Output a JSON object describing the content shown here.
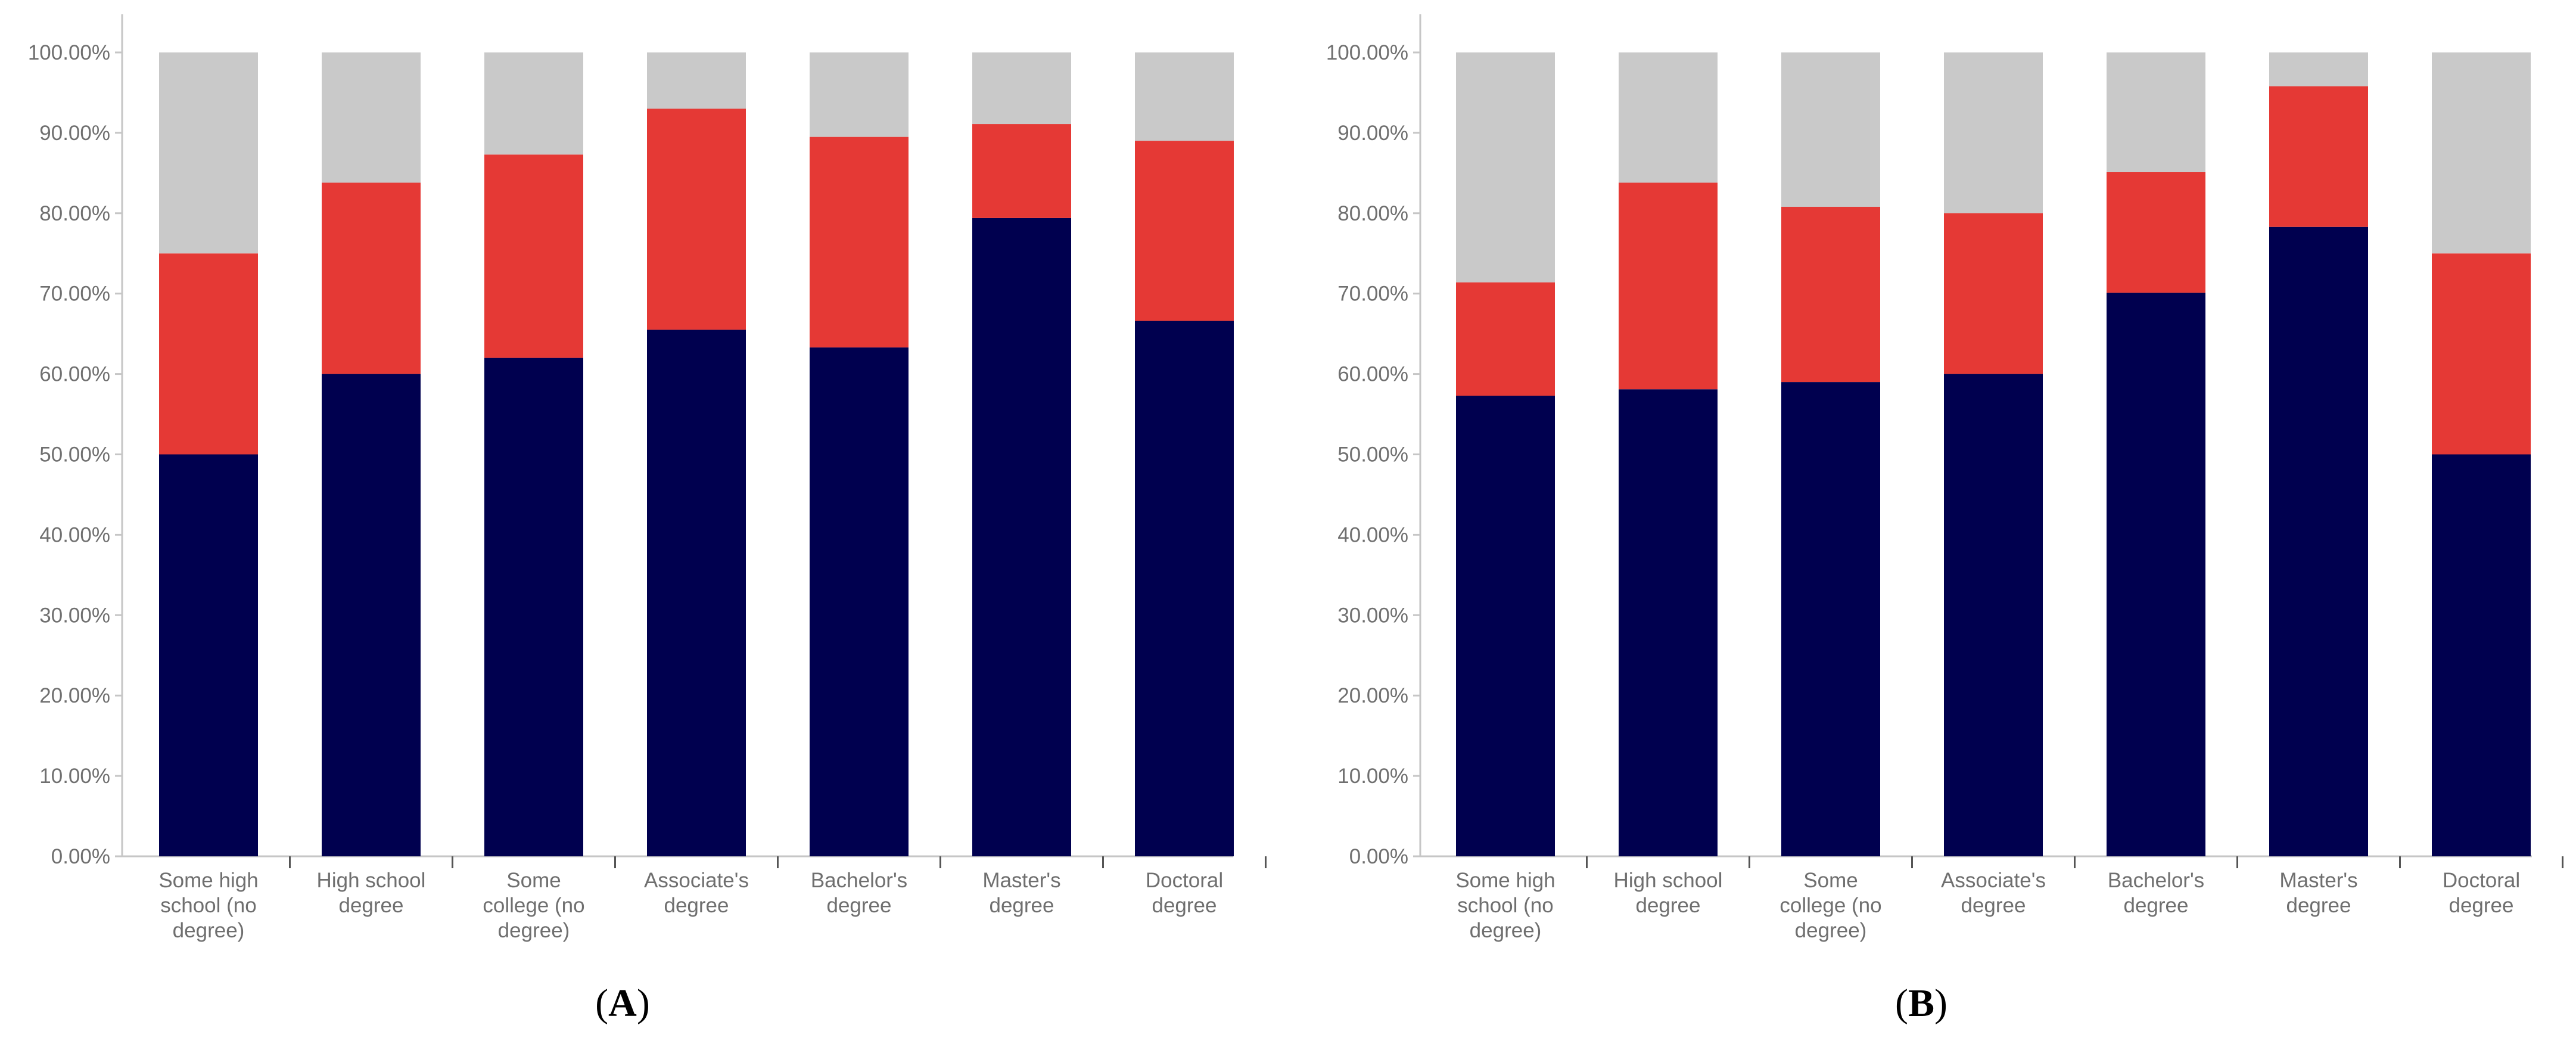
{
  "colors": {
    "segment1": "#00004f",
    "segment2": "#e53935",
    "segment3": "#c9c9c9",
    "axis": "#c6c6c6",
    "label": "#6f6f6f"
  },
  "chart_data": [
    {
      "type": "bar",
      "stacked": true,
      "panel_label": "A",
      "title": "",
      "xlabel": "",
      "ylabel": "",
      "ylim": [
        0,
        100
      ],
      "y_ticks": [
        0,
        10,
        20,
        30,
        40,
        50,
        60,
        70,
        80,
        90,
        100
      ],
      "y_tick_labels": [
        "0.00%",
        "10.00%",
        "20.00%",
        "30.00%",
        "40.00%",
        "50.00%",
        "60.00%",
        "70.00%",
        "80.00%",
        "90.00%",
        "100.00%"
      ],
      "categories": [
        [
          "Some high",
          "school (no",
          "degree)"
        ],
        [
          "High school",
          "degree"
        ],
        [
          "Some",
          "college (no",
          "degree)"
        ],
        [
          "Associate's",
          "degree"
        ],
        [
          "Bachelor's",
          "degree"
        ],
        [
          "Master's",
          "degree"
        ],
        [
          "Doctoral",
          "degree"
        ]
      ],
      "series": [
        {
          "name": "segment1",
          "values": [
            50.0,
            60.0,
            62.0,
            65.5,
            63.3,
            79.4,
            66.6
          ]
        },
        {
          "name": "segment2",
          "values": [
            25.0,
            23.8,
            25.3,
            27.5,
            26.2,
            11.7,
            22.4
          ]
        },
        {
          "name": "segment3",
          "values": [
            25.0,
            16.2,
            12.7,
            7.0,
            10.5,
            8.9,
            11.0
          ]
        }
      ]
    },
    {
      "type": "bar",
      "stacked": true,
      "panel_label": "B",
      "title": "",
      "xlabel": "",
      "ylabel": "",
      "ylim": [
        0,
        100
      ],
      "y_ticks": [
        0,
        10,
        20,
        30,
        40,
        50,
        60,
        70,
        80,
        90,
        100
      ],
      "y_tick_labels": [
        "0.00%",
        "10.00%",
        "20.00%",
        "30.00%",
        "40.00%",
        "50.00%",
        "60.00%",
        "70.00%",
        "80.00%",
        "90.00%",
        "100.00%"
      ],
      "categories": [
        [
          "Some high",
          "school (no",
          "degree)"
        ],
        [
          "High school",
          "degree"
        ],
        [
          "Some",
          "college (no",
          "degree)"
        ],
        [
          "Associate's",
          "degree"
        ],
        [
          "Bachelor's",
          "degree"
        ],
        [
          "Master's",
          "degree"
        ],
        [
          "Doctoral",
          "degree"
        ]
      ],
      "series": [
        {
          "name": "segment1",
          "values": [
            57.3,
            58.1,
            59.0,
            60.0,
            70.1,
            78.3,
            50.0
          ]
        },
        {
          "name": "segment2",
          "values": [
            14.1,
            25.7,
            21.8,
            20.0,
            15.0,
            17.5,
            25.0
          ]
        },
        {
          "name": "segment3",
          "values": [
            28.6,
            16.2,
            19.2,
            20.0,
            14.9,
            4.2,
            25.0
          ]
        }
      ]
    }
  ]
}
